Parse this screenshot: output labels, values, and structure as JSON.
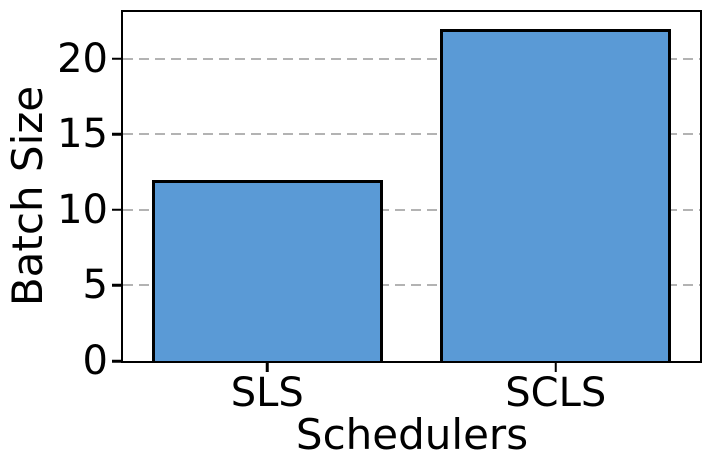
{
  "chart_data": {
    "type": "bar",
    "categories": [
      "SLS",
      "SCLS"
    ],
    "values": [
      12,
      22
    ],
    "title": "",
    "xlabel": "Schedulers",
    "ylabel": "Batch Size",
    "ylim": [
      0,
      23.1
    ],
    "yticks": [
      0,
      5,
      10,
      15,
      20
    ],
    "grid": true,
    "grid_axis": "y",
    "grid_linestyle": "dashed",
    "legend": "none",
    "bar_width_frac": 0.8,
    "colors": {
      "bar_fill": "#5A9AD6",
      "bar_edge": "#000000",
      "grid": "#b3b3b3",
      "spine": "#000000",
      "text": "#000000",
      "background": "#ffffff"
    }
  }
}
